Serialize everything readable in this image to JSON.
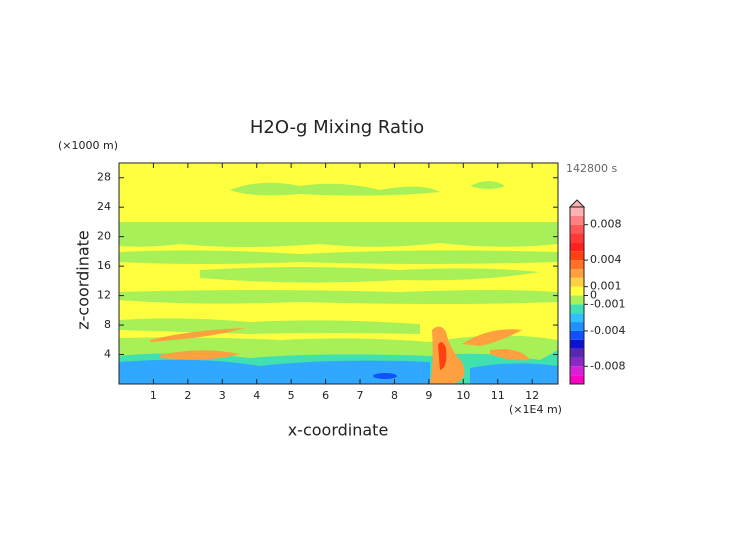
{
  "chart_data": {
    "type": "contour",
    "title": "H2O-g Mixing Ratio",
    "time_label": "142800 s",
    "x_label": "x-coordinate",
    "x_unit": "(×1E4 m)",
    "y_label": "z-coordinate",
    "y_unit": "(×1000 m)",
    "xlim": [
      0,
      12.75
    ],
    "xticks": [
      1,
      2,
      3,
      4,
      5,
      6,
      7,
      8,
      9,
      10,
      11,
      12
    ],
    "ylim": [
      0,
      30
    ],
    "yticks": [
      4,
      8,
      12,
      16,
      20,
      24,
      28
    ],
    "colorbar": {
      "lim": [
        -0.01,
        0.01
      ],
      "colors": [
        "#ff00c8",
        "#d820d8",
        "#8a28c8",
        "#5a28b0",
        "#1010d0",
        "#1050ff",
        "#2090ff",
        "#30c0ff",
        "#40e0b0",
        "#a8f058",
        "#ffff40",
        "#ffd040",
        "#ffa040",
        "#ff7028",
        "#ff4010",
        "#ff2020",
        "#ff3838",
        "#ff5858",
        "#ff8080",
        "#ffb0b0"
      ],
      "ticks": [
        -0.008,
        -0.004,
        -0.001,
        0,
        0.001,
        0.004,
        0.008
      ]
    }
  }
}
